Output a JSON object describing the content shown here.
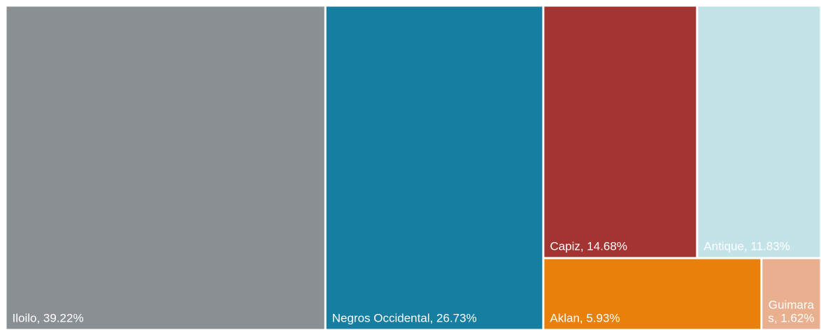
{
  "chart_data": {
    "type": "treemap",
    "values": [
      39.22,
      26.73,
      14.68,
      11.83,
      5.93,
      1.62
    ],
    "value_labels": [
      "Iloilo, 39.22%",
      "Negros Occidental, 26.73%",
      "Capiz, 14.68%",
      "Antique, 11.83%",
      "Aklan, 5.93%",
      "Guimaras, 1.62%"
    ],
    "colors": [
      "#8a8f93",
      "#167ea0",
      "#a33431",
      "#c3e3e8",
      "#e8800b",
      "#e8b08f"
    ]
  }
}
